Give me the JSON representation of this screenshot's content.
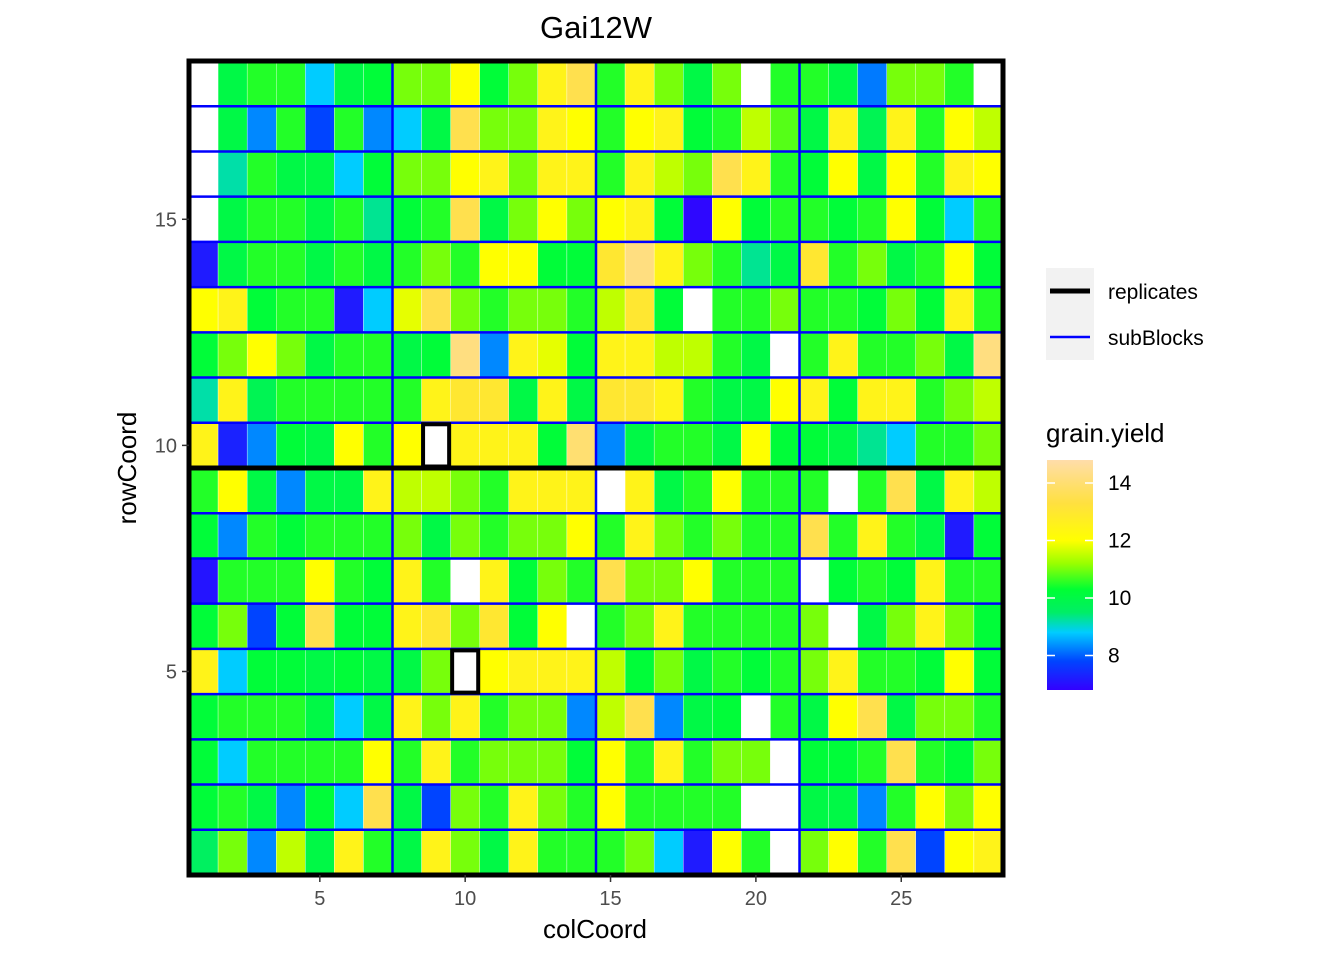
{
  "chart_data": {
    "type": "heatmap",
    "title": "Gai12W",
    "xlabel": "colCoord",
    "ylabel": "rowCoord",
    "xlim": [
      0.5,
      28.5
    ],
    "ylim": [
      0.5,
      18.5
    ],
    "x_ticks": [
      5,
      10,
      15,
      20,
      25
    ],
    "y_ticks": [
      5,
      10,
      15
    ],
    "fill_variable": "grain.yield",
    "color_scale": {
      "range": [
        6.8,
        14.8
      ],
      "breaks": [
        8,
        10,
        12,
        14
      ],
      "stops": [
        {
          "value": 6.8,
          "color": "#3300ff"
        },
        {
          "value": 7.8,
          "color": "#0044ff"
        },
        {
          "value": 8.8,
          "color": "#00ccff"
        },
        {
          "value": 9.5,
          "color": "#00ee66"
        },
        {
          "value": 10.3,
          "color": "#00ff33"
        },
        {
          "value": 11.2,
          "color": "#99ff00"
        },
        {
          "value": 12.0,
          "color": "#ffff00"
        },
        {
          "value": 13.3,
          "color": "#ffe040"
        },
        {
          "value": 14.8,
          "color": "#ffddaa"
        }
      ],
      "missing_color": "#ffffff"
    },
    "grid_rows_top_to_bottom": [
      [
        null,
        10,
        10.5,
        10.5,
        8.8,
        10,
        10.2,
        11,
        11,
        12,
        10.2,
        11,
        12.5,
        13.5,
        10.5,
        12.5,
        11,
        10,
        11,
        null,
        10.5,
        10.5,
        10,
        8.2,
        11,
        11,
        10.5,
        null
      ],
      [
        null,
        10,
        8.3,
        10.5,
        7.8,
        10.5,
        8.3,
        8.8,
        10,
        13.5,
        11,
        11,
        12.5,
        12,
        10.5,
        12,
        12.5,
        10.2,
        10.5,
        11.5,
        10.8,
        10,
        12.5,
        9.8,
        12.5,
        10.5,
        12,
        11.5
      ],
      [
        null,
        9.2,
        10.5,
        10,
        10,
        8.8,
        10.2,
        11,
        11,
        12,
        12.5,
        11,
        12.5,
        12.5,
        10.5,
        12.5,
        11.5,
        11,
        13.5,
        12.5,
        10.5,
        10.2,
        12,
        10,
        12,
        10.5,
        12.5,
        12
      ],
      [
        null,
        10,
        10.5,
        10.5,
        10,
        10.5,
        9.3,
        10.2,
        10.5,
        13.5,
        10,
        11,
        12,
        11,
        12,
        12.5,
        10.2,
        6.9,
        12,
        10.2,
        10.5,
        10.5,
        10.2,
        10.5,
        12,
        10.2,
        8.8,
        10.5
      ],
      [
        7.2,
        10,
        10.5,
        10.5,
        10,
        10.5,
        10,
        10.5,
        11,
        10.5,
        12,
        12,
        10.2,
        10.2,
        13,
        14.2,
        12.5,
        11,
        10.5,
        9.3,
        10,
        13,
        10.5,
        11,
        10,
        10.5,
        12,
        10.2
      ],
      [
        12,
        12.5,
        10.2,
        10.5,
        10.5,
        7.2,
        8.8,
        11.8,
        13.5,
        11,
        10.5,
        11,
        11,
        10.5,
        11.5,
        13,
        10.2,
        null,
        10.5,
        10.5,
        11,
        10.5,
        10.5,
        10.2,
        11,
        10.2,
        12.5,
        10.5
      ],
      [
        10.2,
        11,
        12,
        11,
        10,
        10.5,
        10.5,
        10,
        10.2,
        14.2,
        8.3,
        12.5,
        11.8,
        10.2,
        12.5,
        12.5,
        11.5,
        11.5,
        10.5,
        10,
        null,
        10.5,
        12.5,
        10.5,
        10.5,
        11,
        10,
        14.2
      ],
      [
        9.2,
        12.5,
        9.8,
        10.5,
        10.5,
        10.5,
        10.5,
        10.5,
        12.5,
        13,
        13,
        10,
        12.5,
        10,
        13,
        13,
        12.5,
        10.5,
        10,
        10,
        12,
        12.5,
        10.2,
        12.5,
        12.5,
        10.5,
        11,
        11.5
      ],
      [
        12.5,
        7.3,
        8.3,
        10.2,
        10,
        12,
        10.5,
        12,
        null,
        12.5,
        12.5,
        12.5,
        10.2,
        14,
        8.3,
        10,
        10.5,
        10.5,
        10,
        12,
        10.2,
        10.2,
        10,
        9.3,
        8.8,
        10.5,
        10.5,
        11
      ],
      [
        10.5,
        12,
        10,
        8.3,
        10,
        10,
        12.5,
        11.5,
        11.5,
        11,
        10.5,
        12.5,
        12.5,
        12.5,
        null,
        12.5,
        10,
        10.5,
        12,
        10.5,
        10.5,
        10.5,
        null,
        10.5,
        13.5,
        10,
        12.5,
        11.5
      ],
      [
        10.2,
        8.3,
        10.5,
        10.2,
        10.5,
        10.5,
        10.5,
        11,
        10,
        11,
        10.5,
        11,
        11,
        12,
        10.5,
        12.5,
        11,
        10.5,
        11,
        10.5,
        10.5,
        13.5,
        10.5,
        12.5,
        10.5,
        10,
        7.2,
        10.2
      ],
      [
        7.1,
        10.5,
        10.5,
        10.5,
        12,
        10.5,
        10.2,
        12.5,
        10.5,
        null,
        12.5,
        10.2,
        11,
        10.5,
        13.5,
        11,
        11,
        12,
        10.5,
        10.5,
        10.5,
        null,
        10.2,
        10.5,
        10.2,
        12.5,
        10.5,
        10.5
      ],
      [
        10.2,
        11,
        7.8,
        10.2,
        13.5,
        10.2,
        10.2,
        12.5,
        13,
        11,
        13,
        10.2,
        12,
        null,
        10.5,
        11,
        12.5,
        10.5,
        10.5,
        10.5,
        10.5,
        11,
        null,
        10,
        11,
        12.5,
        11,
        10.2
      ],
      [
        12.5,
        8.8,
        10.2,
        10.2,
        10,
        10.2,
        10,
        10,
        11,
        null,
        12,
        12.5,
        12.5,
        12.5,
        11.5,
        10.2,
        11,
        10,
        10.5,
        10.2,
        10.5,
        11,
        12.5,
        10.5,
        10.5,
        10.2,
        12,
        10.2
      ],
      [
        10.2,
        10.5,
        10.5,
        10.5,
        10,
        8.8,
        10,
        12.5,
        11,
        12.5,
        10.5,
        11,
        11,
        8.3,
        11.5,
        13.5,
        8.3,
        10,
        10.2,
        null,
        10.5,
        10,
        12,
        13.5,
        10,
        11,
        11,
        10.5
      ],
      [
        10.2,
        8.8,
        10.5,
        10.5,
        10.5,
        10.5,
        12,
        10.5,
        12.5,
        10.5,
        11,
        11,
        11,
        10.2,
        12,
        10.5,
        12.5,
        10.5,
        11,
        11,
        null,
        10.2,
        10.2,
        10.5,
        13.5,
        10.5,
        10.2,
        11
      ],
      [
        10.2,
        10.5,
        10,
        8.3,
        10.2,
        8.8,
        13.5,
        10,
        7.8,
        11,
        10.5,
        12.5,
        11,
        10.5,
        12,
        10.5,
        10.5,
        10.5,
        10.5,
        null,
        null,
        10,
        10,
        8.3,
        10.5,
        12,
        11,
        12
      ],
      [
        9.6,
        11,
        8.3,
        11.5,
        10,
        12.5,
        10.5,
        10,
        12.5,
        11,
        10,
        12.5,
        10.5,
        10.5,
        10.5,
        11,
        8.8,
        7.2,
        12,
        10.5,
        null,
        11,
        12,
        10.5,
        13.5,
        7.8,
        12,
        12.5
      ]
    ],
    "subblock_col_breaks": [
      7.5,
      14.5,
      21.5
    ],
    "subblock_row_breaks": [
      1.5,
      2.5,
      3.5,
      4.5,
      5.5,
      6.5,
      7.5,
      8.5,
      9.5,
      10.5,
      11.5,
      12.5,
      13.5,
      14.5,
      15.5,
      16.5,
      17.5
    ],
    "replicate_row_break": 9.5,
    "replicate_highlight_cells": [
      [
        9,
        10
      ],
      [
        10,
        5
      ]
    ],
    "legend": {
      "placement": "right",
      "lines": [
        {
          "label": "replicates",
          "color": "#000000"
        },
        {
          "label": "subBlocks",
          "color": "#0000ff"
        }
      ],
      "colorbar_title": "grain.yield"
    }
  }
}
